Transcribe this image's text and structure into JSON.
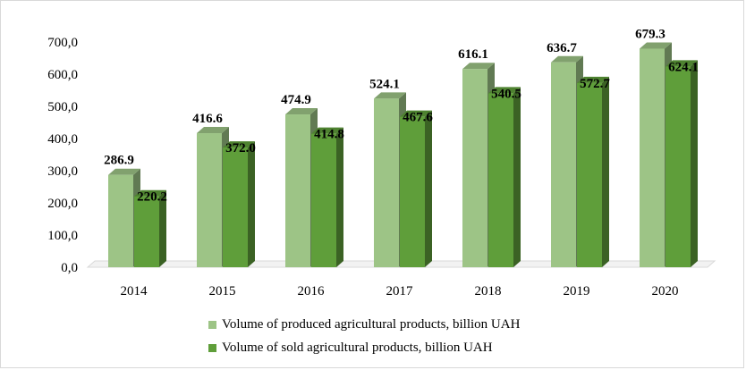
{
  "chart_data": {
    "type": "bar",
    "categories": [
      "2014",
      "2015",
      "2016",
      "2017",
      "2018",
      "2019",
      "2020"
    ],
    "series": [
      {
        "name": "Volume of produced agricultural products, billion UAH",
        "values": [
          286.9,
          416.6,
          474.9,
          524.1,
          616.1,
          636.7,
          679.3
        ],
        "labels": [
          "286.9",
          "416.6",
          "474.9",
          "524.1",
          "616.1",
          "636.7",
          "679.3"
        ],
        "color": "#9dc486"
      },
      {
        "name": "Volume of sold agricultural products, billion UAH",
        "values": [
          220.2,
          372.0,
          414.8,
          467.6,
          540.5,
          572.7,
          624.1
        ],
        "labels": [
          "220.2",
          "372.0",
          "414.8",
          "467.6",
          "540.5",
          "572.7",
          "624.1"
        ],
        "color": "#5f9e3a"
      }
    ],
    "ylim": [
      0,
      700
    ],
    "yticks": [
      "0,0",
      "100,0",
      "200,0",
      "300,0",
      "400,0",
      "500,0",
      "600,0",
      "700,0"
    ],
    "grid": false,
    "legend_position": "bottom",
    "style": "3d-column"
  }
}
